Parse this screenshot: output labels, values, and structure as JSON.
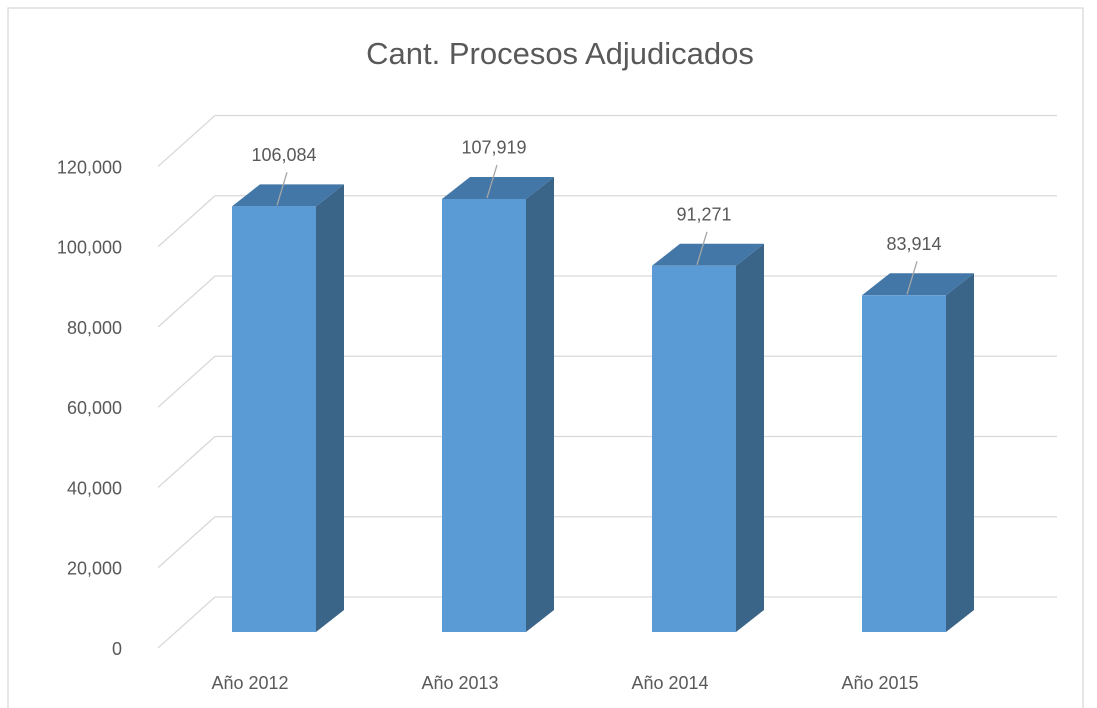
{
  "chart_data": {
    "type": "bar3d",
    "title": "Cant. Procesos Adjudicados",
    "categories": [
      "Año 2012",
      "Año 2013",
      "Año 2014",
      "Año 2015"
    ],
    "values": [
      106084,
      107919,
      91271,
      83914
    ],
    "value_labels": [
      "106,084",
      "107,919",
      "91,271",
      "83,914"
    ],
    "color": "#5b9bd5",
    "ylim": [
      0,
      120000
    ],
    "yticks": [
      0,
      {
        "value": 20000,
        "label": "20,000"
      },
      {
        "value": 40000,
        "label": "40,000"
      },
      {
        "value": 60000,
        "label": "60,000"
      },
      {
        "value": 80000,
        "label": "80,000"
      },
      {
        "value": 100000,
        "label": "100,000"
      },
      {
        "value": 120000,
        "label": "120,000"
      }
    ],
    "grid": true
  }
}
